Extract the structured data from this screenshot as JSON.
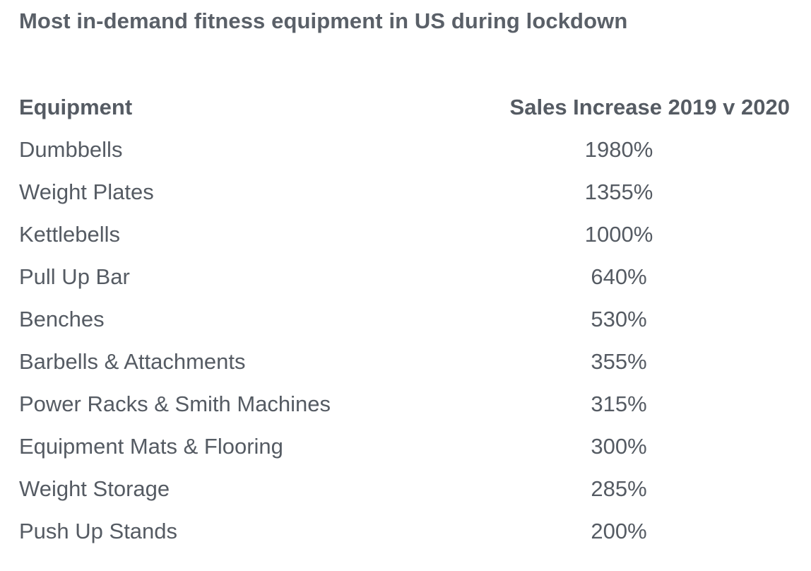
{
  "title": "Most in-demand fitness equipment in US during lockdown",
  "chart_data": {
    "type": "table",
    "title": "Most in-demand fitness equipment in US during lockdown",
    "columns": [
      "Equipment",
      "Sales Increase 2019 v 2020"
    ],
    "rows": [
      {
        "equipment": "Dumbbells",
        "sales_increase": "1980%"
      },
      {
        "equipment": "Weight Plates",
        "sales_increase": "1355%"
      },
      {
        "equipment": "Kettlebells",
        "sales_increase": "1000%"
      },
      {
        "equipment": "Pull Up Bar",
        "sales_increase": "640%"
      },
      {
        "equipment": "Benches",
        "sales_increase": "530%"
      },
      {
        "equipment": "Barbells & Attachments",
        "sales_increase": "355%"
      },
      {
        "equipment": "Power Racks & Smith Machines",
        "sales_increase": "315%"
      },
      {
        "equipment": "Equipment Mats & Flooring",
        "sales_increase": "300%"
      },
      {
        "equipment": "Weight Storage",
        "sales_increase": "285%"
      },
      {
        "equipment": "Push Up Stands",
        "sales_increase": "200%"
      }
    ]
  }
}
